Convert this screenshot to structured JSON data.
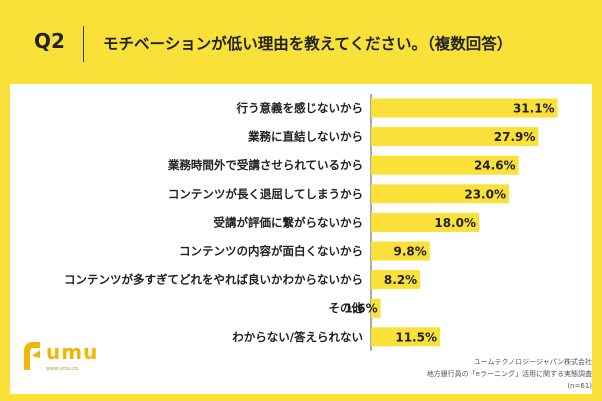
{
  "header": {
    "qnum": "Q2",
    "question": "モチベーションが低い理由を教えてください。（複数回答）"
  },
  "chart_data": {
    "type": "bar",
    "orientation": "horizontal",
    "categories": [
      "行う意義を感じないから",
      "業務に直結しないから",
      "業務時間外で受講させられているから",
      "コンテンツが長く退屈してしまうから",
      "受講が評価に繋がらないから",
      "コンテンツの内容が面白くないから",
      "コンテンツが多すぎてどれをやれば良いかわからないから",
      "その他",
      "わからない/答えられない"
    ],
    "values": [
      31.1,
      27.9,
      24.6,
      23.0,
      18.0,
      9.8,
      8.2,
      1.6,
      11.5
    ],
    "value_labels": [
      "31.1%",
      "27.9%",
      "24.6%",
      "23.0%",
      "18.0%",
      "9.8%",
      "8.2%",
      "1.6%",
      "11.5%"
    ],
    "xlim": [
      0,
      35
    ],
    "bar_color": "#FAE13A",
    "grid": false,
    "legend": "none"
  },
  "logo": {
    "word": "umu",
    "url": "www.umu.co"
  },
  "source": {
    "line1": "ユームテクノロジージャパン株式会社",
    "line2": "地方銀行員の「eラーニング」活用に関する実態調査",
    "line3": "(n=61)"
  },
  "colors": {
    "background": "#FAE13A",
    "panel": "#FFFFFF",
    "axis": "#555555",
    "logo": "#F2B705"
  }
}
